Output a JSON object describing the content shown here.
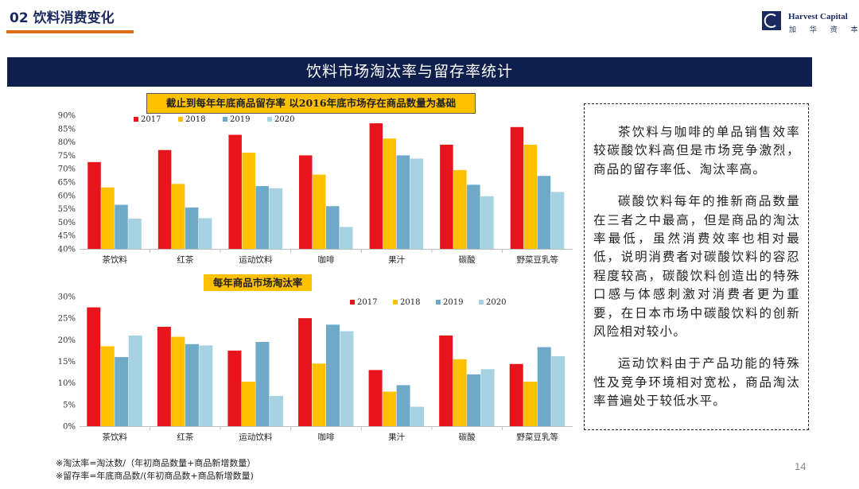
{
  "header": {
    "section_title": "02 饮料消费变化",
    "logo_text": "Harvest Capital",
    "logo_sub": "加 华 资 本"
  },
  "banner": {
    "title": "饮料市场淘汰率与留存率统计"
  },
  "colors": {
    "brand_navy": "#0f1f4d",
    "accent_orange": "#e0701a",
    "title_yellow": "#ffc000",
    "s2017": "#e8141c",
    "s2018": "#ffc000",
    "s2019": "#6ea9c8",
    "s2020": "#a6d2e2"
  },
  "chart_data": [
    {
      "type": "bar",
      "title": "截止到每年年底商品留存率 以2016年底市场存在商品数量为基础",
      "categories": [
        "茶饮料",
        "红茶",
        "运动饮料",
        "咖啡",
        "果汁",
        "碳酸",
        "野菜豆乳等"
      ],
      "series": [
        {
          "name": "2017",
          "values": [
            72.5,
            77,
            82.7,
            75,
            87,
            79,
            85.6
          ]
        },
        {
          "name": "2018",
          "values": [
            63,
            64.3,
            76,
            67.8,
            81.3,
            69.5,
            79
          ]
        },
        {
          "name": "2019",
          "values": [
            56.5,
            55.5,
            63.5,
            56,
            75,
            64,
            67.3
          ]
        },
        {
          "name": "2020",
          "values": [
            51.3,
            51.5,
            62.7,
            48.2,
            73.8,
            59.7,
            61.3
          ]
        }
      ],
      "ylim": [
        40,
        90
      ],
      "yticks": [
        "40%",
        "45%",
        "50%",
        "55%",
        "60%",
        "65%",
        "70%",
        "75%",
        "80%",
        "85%",
        "90%"
      ],
      "legend_position": "top-left",
      "xlabel": "",
      "ylabel": ""
    },
    {
      "type": "bar",
      "title": "每年商品市场淘汰率",
      "categories": [
        "茶饮料",
        "红茶",
        "运动饮料",
        "咖啡",
        "果汁",
        "碳酸",
        "野菜豆乳等"
      ],
      "series": [
        {
          "name": "2017",
          "values": [
            27.5,
            23,
            17.5,
            25,
            13,
            21,
            14.4
          ]
        },
        {
          "name": "2018",
          "values": [
            18.5,
            20.7,
            10.3,
            14.5,
            8,
            15.5,
            10.3
          ]
        },
        {
          "name": "2019",
          "values": [
            16,
            19,
            19.5,
            23.5,
            9.5,
            12,
            18.3
          ]
        },
        {
          "name": "2020",
          "values": [
            21,
            18.7,
            7,
            22,
            4.5,
            13.2,
            16.2
          ]
        }
      ],
      "ylim": [
        0,
        30
      ],
      "yticks": [
        "0%",
        "5%",
        "10%",
        "15%",
        "20%",
        "25%",
        "30%"
      ],
      "legend_position": "top-right",
      "xlabel": "",
      "ylabel": ""
    }
  ],
  "text_box": {
    "paragraphs": [
      "茶饮料与咖啡的单品销售效率较碳酸饮料高但是市场竞争激烈，商品的留存率低、淘汰率高。",
      "碳酸饮料每年的推新商品数量在三者之中最高，但是商品的淘汰率最低，虽然消费效率也相对最低，说明消费者对碳酸饮料的容忍程度较高，碳酸饮料创造出的特殊口感与体感刺激对消费者更为重要，在日本市场中碳酸饮料的创新风险相对较小。",
      "运动饮料由于产品功能的特殊性及竞争环境相对宽松，商品淘汰率普遍处于较低水平。"
    ]
  },
  "notes": {
    "line1": "※淘汰率=淘汰数/（年初商品数量+商品新增数量）",
    "line2": "※留存率=年底商品数/(年初商品数+商品新增数量)"
  },
  "page_number": "14"
}
